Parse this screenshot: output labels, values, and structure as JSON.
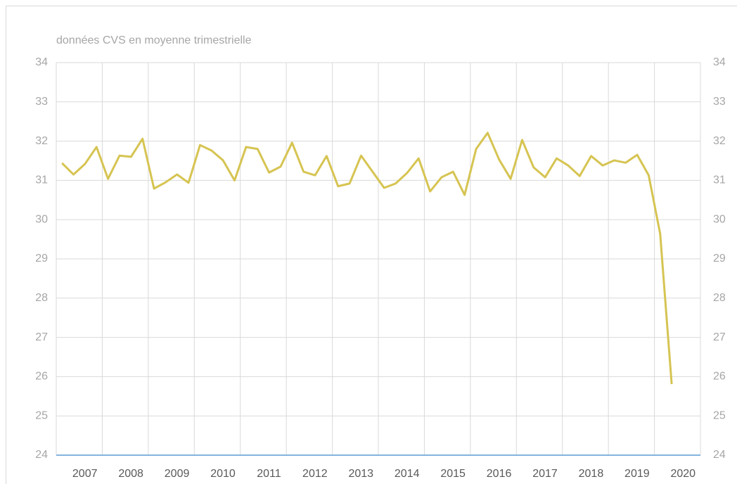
{
  "chart_data": {
    "type": "line",
    "subtitle": "données CVS en moyenne trimestrielle",
    "years": [
      "2007",
      "2008",
      "2009",
      "2010",
      "2011",
      "2012",
      "2013",
      "2014",
      "2015",
      "2016",
      "2017",
      "2018",
      "2019",
      "2020"
    ],
    "values": [
      31.44,
      31.15,
      31.42,
      31.85,
      31.04,
      31.63,
      31.6,
      32.06,
      30.79,
      30.95,
      31.15,
      30.94,
      31.9,
      31.76,
      31.51,
      31.0,
      31.85,
      31.8,
      31.2,
      31.35,
      31.96,
      31.22,
      31.13,
      31.62,
      30.85,
      30.92,
      31.63,
      31.22,
      30.81,
      30.92,
      31.19,
      31.56,
      30.72,
      31.08,
      31.22,
      30.63,
      31.8,
      32.21,
      31.53,
      31.04,
      32.03,
      31.33,
      31.08,
      31.56,
      31.38,
      31.11,
      31.62,
      31.38,
      31.51,
      31.45,
      31.65,
      31.13,
      29.64,
      25.81
    ],
    "color": "#d6c452",
    "ylim": [
      24,
      34
    ],
    "yticks": [
      24,
      25,
      26,
      27,
      28,
      29,
      30,
      31,
      32,
      33,
      34
    ],
    "y2lim": [
      24,
      34
    ],
    "y2ticks": [
      24,
      25,
      26,
      27,
      28,
      29,
      30,
      31,
      32,
      33,
      34
    ],
    "grid": true
  }
}
